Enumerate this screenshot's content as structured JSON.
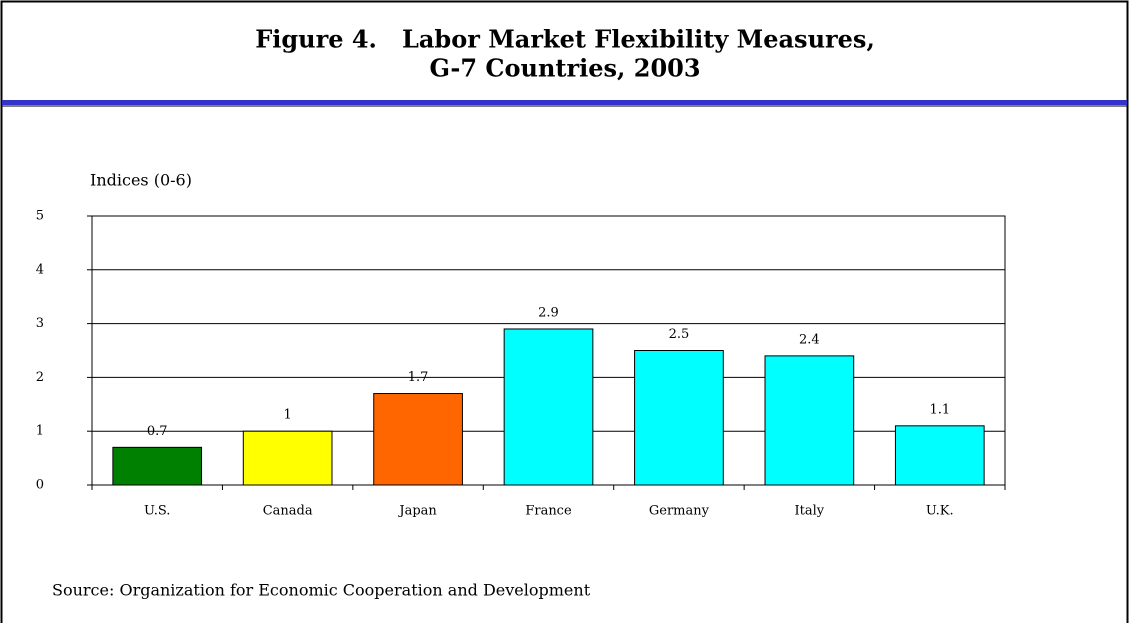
{
  "chart_data": {
    "type": "bar",
    "title": "Figure 4.   Labor Market Flexibility Measures,",
    "subtitle": "G-7 Countries, 2003",
    "y_axis_label": "Indices (0-6)",
    "source": "Source: Organization for Economic Cooperation and Development",
    "categories": [
      "U.S.",
      "Canada",
      "Japan",
      "France",
      "Germany",
      "Italy",
      "U.K."
    ],
    "values": [
      0.7,
      1,
      1.7,
      2.9,
      2.5,
      2.4,
      1.1
    ],
    "colors": [
      "#008000",
      "#ffff00",
      "#ff6600",
      "#00ffff",
      "#00ffff",
      "#00ffff",
      "#00ffff"
    ],
    "ylim": [
      0,
      5
    ],
    "yticks": [
      0,
      1,
      2,
      3,
      4,
      5
    ],
    "grid": true
  }
}
